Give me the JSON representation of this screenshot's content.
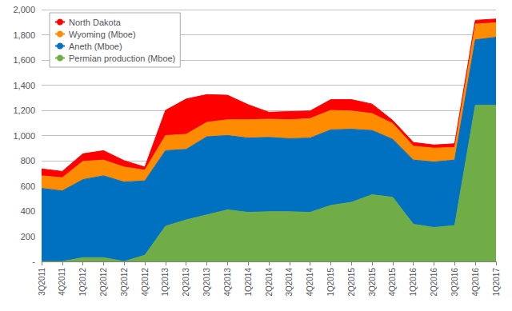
{
  "chart_data": {
    "type": "area",
    "stacked": true,
    "grid": true,
    "legend": "upper left",
    "categories": [
      "3Q2011",
      "4Q2011",
      "1Q2012",
      "2Q2012",
      "3Q2012",
      "4Q2012",
      "1Q2013",
      "2Q2013",
      "3Q2013",
      "4Q2013",
      "1Q2014",
      "2Q2014",
      "3Q2014",
      "4Q2014",
      "1Q2015",
      "2Q2015",
      "3Q2015",
      "4Q2015",
      "1Q2016",
      "2Q2016",
      "3Q2016",
      "4Q2016",
      "1Q2017"
    ],
    "series": [
      {
        "name": "Permian production (Mboe)",
        "color": "#70AD47",
        "values": [
          0,
          0,
          30,
          30,
          0,
          50,
          280,
          330,
          370,
          410,
          390,
          395,
          395,
          390,
          445,
          470,
          530,
          510,
          295,
          270,
          285,
          1240,
          1240
        ]
      },
      {
        "name": "Aneth (Mboe)",
        "color": "#0070C0",
        "values": [
          580,
          560,
          620,
          650,
          630,
          590,
          600,
          560,
          620,
          590,
          590,
          590,
          580,
          590,
          600,
          580,
          510,
          460,
          510,
          520,
          520,
          520,
          540
        ]
      },
      {
        "name": "Wyoming (Mboe)",
        "color": "#FF8C00",
        "values": [
          100,
          105,
          145,
          125,
          120,
          85,
          120,
          120,
          115,
          125,
          145,
          145,
          150,
          155,
          155,
          145,
          135,
          125,
          110,
          110,
          100,
          125,
          115
        ]
      },
      {
        "name": "North Dakota",
        "color": "#FF0000",
        "values": [
          55,
          50,
          60,
          75,
          50,
          25,
          200,
          280,
          220,
          195,
          120,
          55,
          65,
          60,
          85,
          90,
          75,
          25,
          30,
          25,
          30,
          30,
          30
        ]
      }
    ],
    "ylim": [
      0,
      2000
    ],
    "yticks": [
      {
        "value": 0,
        "label": "-"
      },
      200,
      400,
      600,
      800,
      {
        "value": 1000,
        "label": "1,000"
      },
      {
        "value": 1200,
        "label": "1,200"
      },
      {
        "value": 1400,
        "label": "1,400"
      },
      {
        "value": 1600,
        "label": "1,600"
      },
      {
        "value": 1800,
        "label": "1,800"
      },
      {
        "value": 2000,
        "label": "2,000"
      }
    ]
  }
}
